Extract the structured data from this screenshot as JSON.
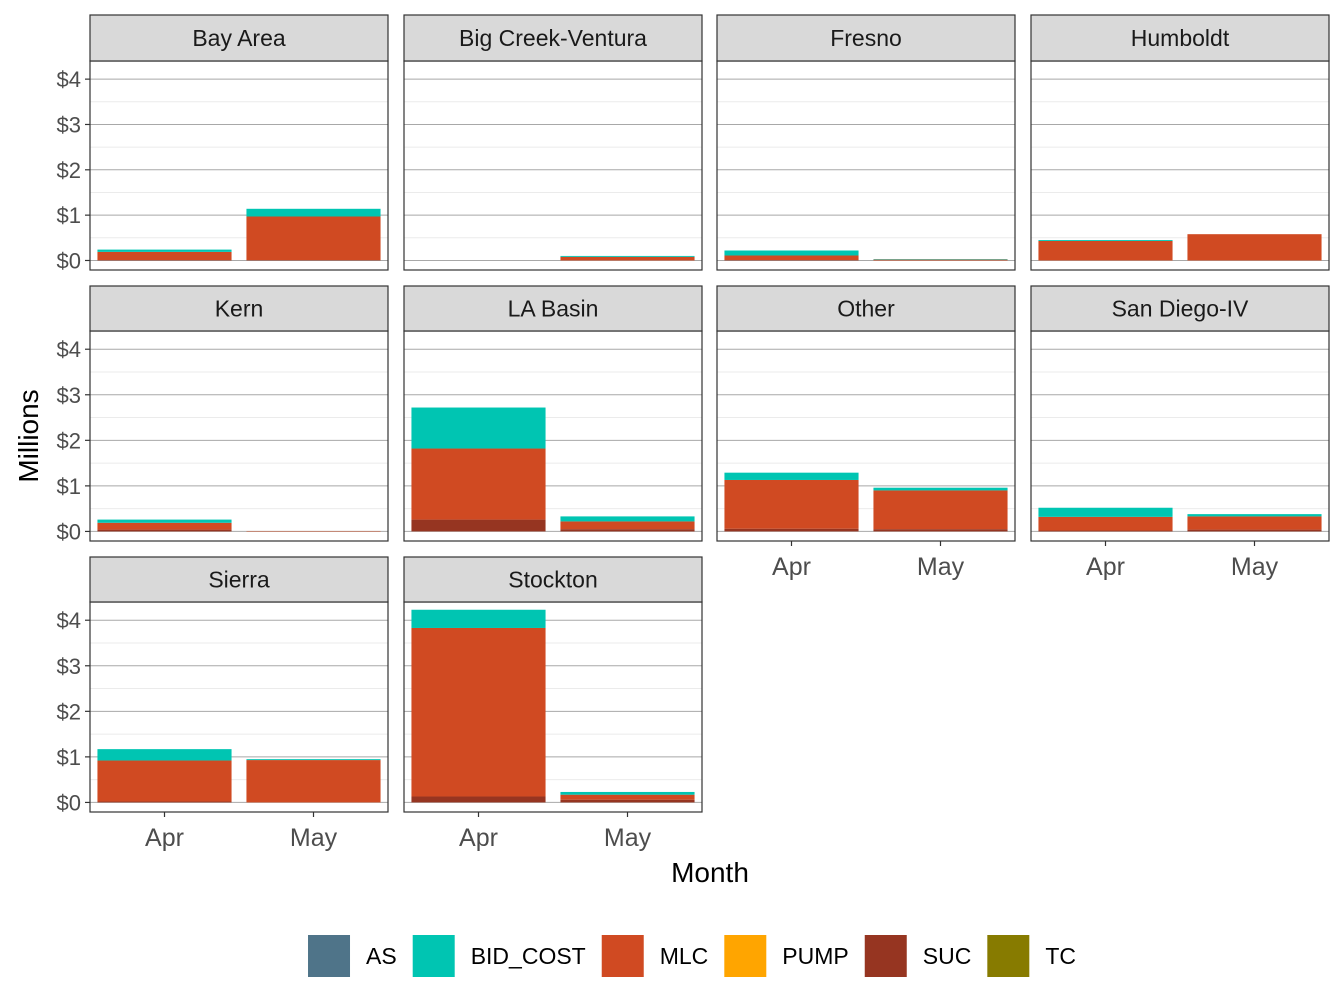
{
  "chart_data": {
    "type": "bar",
    "stacked": true,
    "faceted": true,
    "xlabel": "Month",
    "ylabel": "Millions",
    "y_tick_labels": [
      "$0",
      "$1",
      "$2",
      "$3",
      "$4"
    ],
    "y_ticks": [
      0,
      1,
      2,
      3,
      4
    ],
    "ylim": [
      -0.21,
      4.4
    ],
    "categories": [
      "Apr",
      "May"
    ],
    "legend": {
      "position": "bottom",
      "entries": [
        {
          "name": "AS",
          "color": "#4F7489"
        },
        {
          "name": "BID_COST",
          "color": "#00C5B2"
        },
        {
          "name": "MLC",
          "color": "#D04A22"
        },
        {
          "name": "PUMP",
          "color": "#FFA500"
        },
        {
          "name": "SUC",
          "color": "#963521"
        },
        {
          "name": "TC",
          "color": "#877B00"
        }
      ]
    },
    "stack_order_bottom_to_top": [
      "SUC",
      "MLC",
      "BID_COST"
    ],
    "facets": [
      {
        "title": "Bay Area",
        "values": {
          "SUC": [
            0.01,
            0.01
          ],
          "MLC": [
            0.18,
            0.96
          ],
          "BID_COST": [
            0.05,
            0.17
          ]
        }
      },
      {
        "title": "Big Creek-Ventura",
        "values": {
          "SUC": [
            0,
            0.0
          ],
          "MLC": [
            0,
            0.08
          ],
          "BID_COST": [
            0,
            0.02
          ]
        }
      },
      {
        "title": "Fresno",
        "values": {
          "SUC": [
            0.01,
            0.0
          ],
          "MLC": [
            0.1,
            0.02
          ],
          "BID_COST": [
            0.11,
            0.01
          ]
        }
      },
      {
        "title": "Humboldt",
        "values": {
          "SUC": [
            0.0,
            0.0
          ],
          "MLC": [
            0.43,
            0.58
          ],
          "BID_COST": [
            0.02,
            0.0
          ]
        }
      },
      {
        "title": "Kern",
        "values": {
          "SUC": [
            0.04,
            0.0
          ],
          "MLC": [
            0.15,
            0.01
          ],
          "BID_COST": [
            0.07,
            0.0
          ]
        }
      },
      {
        "title": "LA Basin",
        "values": {
          "SUC": [
            0.26,
            0.05
          ],
          "MLC": [
            1.56,
            0.17
          ],
          "BID_COST": [
            0.9,
            0.11
          ]
        }
      },
      {
        "title": "Other",
        "values": {
          "SUC": [
            0.06,
            0.05
          ],
          "MLC": [
            1.07,
            0.85
          ],
          "BID_COST": [
            0.16,
            0.06
          ]
        }
      },
      {
        "title": "San Diego-IV",
        "values": {
          "SUC": [
            0.02,
            0.04
          ],
          "MLC": [
            0.3,
            0.29
          ],
          "BID_COST": [
            0.2,
            0.05
          ]
        }
      },
      {
        "title": "Sierra",
        "values": {
          "SUC": [
            0.02,
            0.0
          ],
          "MLC": [
            0.9,
            0.93
          ],
          "BID_COST": [
            0.25,
            0.02
          ]
        }
      },
      {
        "title": "Stockton",
        "values": {
          "SUC": [
            0.13,
            0.06
          ],
          "MLC": [
            3.7,
            0.11
          ],
          "BID_COST": [
            0.4,
            0.06
          ]
        }
      }
    ]
  }
}
